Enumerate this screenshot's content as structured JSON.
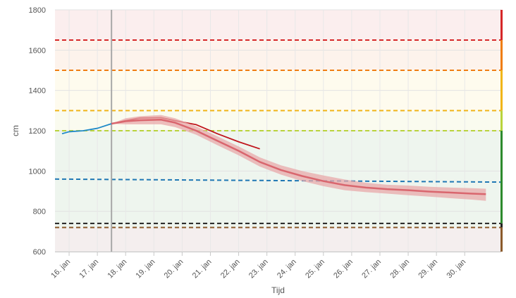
{
  "chart_data": {
    "type": "line",
    "xlabel": "Tijd",
    "ylabel": "cm",
    "ylim": [
      600,
      1800
    ],
    "xlim": [
      "2023-01-15T12:00",
      "2023-01-31T07:00"
    ],
    "yticks": [
      600,
      800,
      1000,
      1200,
      1400,
      1600,
      1800
    ],
    "xticks": [
      {
        "date": "2023-01-16",
        "label": "16. jan"
      },
      {
        "date": "2023-01-17",
        "label": "17. jan"
      },
      {
        "date": "2023-01-18",
        "label": "18. jan"
      },
      {
        "date": "2023-01-19",
        "label": "19. jan"
      },
      {
        "date": "2023-01-20",
        "label": "20. jan"
      },
      {
        "date": "2023-01-21",
        "label": "21. jan"
      },
      {
        "date": "2023-01-22",
        "label": "22. jan"
      },
      {
        "date": "2023-01-23",
        "label": "23. jan"
      },
      {
        "date": "2023-01-24",
        "label": "24. jan"
      },
      {
        "date": "2023-01-25",
        "label": "25. jan"
      },
      {
        "date": "2023-01-26",
        "label": "26. jan"
      },
      {
        "date": "2023-01-27",
        "label": "27. jan"
      },
      {
        "date": "2023-01-28",
        "label": "28. jan"
      },
      {
        "date": "2023-01-29",
        "label": "29. jan"
      },
      {
        "date": "2023-01-30",
        "label": "30. jan"
      }
    ],
    "grid": true,
    "now": "2023-01-17T12:00",
    "zones": [
      {
        "from": 1650,
        "to": 1800,
        "color": "#fbeeee"
      },
      {
        "from": 1500,
        "to": 1650,
        "color": "#fdf3ec"
      },
      {
        "from": 1300,
        "to": 1500,
        "color": "#fefbee"
      },
      {
        "from": 1200,
        "to": 1300,
        "color": "#fafbef"
      },
      {
        "from": 720,
        "to": 1200,
        "color": "#eef5ee"
      },
      {
        "from": 600,
        "to": 720,
        "color": "#f4eeee"
      }
    ],
    "threshold_lines": [
      {
        "value": 1650,
        "color": "#d62728"
      },
      {
        "value": 1500,
        "color": "#ef7d12"
      },
      {
        "value": 1300,
        "color": "#f0b51a"
      },
      {
        "value": 1200,
        "color": "#b9d33c"
      },
      {
        "value": 960,
        "end_value": 945,
        "color": "#1f77b4"
      },
      {
        "value": 740,
        "color": "#222222"
      },
      {
        "value": 720,
        "color": "#8b5a2b"
      }
    ],
    "side_bar": [
      {
        "from": 1650,
        "to": 1800,
        "color": "#d62728"
      },
      {
        "from": 1500,
        "to": 1650,
        "color": "#ef7d12"
      },
      {
        "from": 1300,
        "to": 1500,
        "color": "#f0b51a"
      },
      {
        "from": 1200,
        "to": 1300,
        "color": "#b9d33c"
      },
      {
        "from": 740,
        "to": 1200,
        "color": "#2e8b2e"
      },
      {
        "from": 720,
        "to": 740,
        "color": "#222222"
      },
      {
        "from": 600,
        "to": 720,
        "color": "#8b5a2b"
      }
    ],
    "series": [
      {
        "role": "observed",
        "color": "#1f8ac8",
        "x": [
          "2023-01-15T18:00",
          "2023-01-16T00:00",
          "2023-01-16T12:00",
          "2023-01-17T00:00",
          "2023-01-17T12:00"
        ],
        "y": [
          1185,
          1195,
          1200,
          1212,
          1235
        ]
      },
      {
        "role": "forecast",
        "color": "#c0141c",
        "x": [
          "2023-01-17T12:00",
          "2023-01-18T00:00",
          "2023-01-18T12:00",
          "2023-01-19T06:00",
          "2023-01-19T18:00",
          "2023-01-20T12:00",
          "2023-01-21T06:00",
          "2023-01-22T00:00",
          "2023-01-22T18:00"
        ],
        "y": [
          1235,
          1250,
          1263,
          1265,
          1250,
          1230,
          1185,
          1145,
          1110
        ]
      },
      {
        "role": "ensemble",
        "color": "#d9666e",
        "band_color": "#e8a8aa",
        "x": [
          "2023-01-17T12:00",
          "2023-01-18T00:00",
          "2023-01-18T12:00",
          "2023-01-19T06:00",
          "2023-01-19T18:00",
          "2023-01-20T12:00",
          "2023-01-21T06:00",
          "2023-01-22T00:00",
          "2023-01-22T18:00",
          "2023-01-23T12:00",
          "2023-01-24T06:00",
          "2023-01-25T00:00",
          "2023-01-25T18:00",
          "2023-01-26T12:00",
          "2023-01-27T06:00",
          "2023-01-28T00:00",
          "2023-01-28T18:00",
          "2023-01-29T12:00",
          "2023-01-30T06:00",
          "2023-01-30T18:00"
        ],
        "y": [
          1235,
          1247,
          1252,
          1255,
          1240,
          1200,
          1150,
          1100,
          1045,
          1005,
          975,
          950,
          930,
          918,
          910,
          905,
          898,
          893,
          888,
          885
        ],
        "lower": [
          1235,
          1232,
          1232,
          1232,
          1218,
          1180,
          1128,
          1078,
          1022,
          982,
          950,
          925,
          905,
          895,
          888,
          880,
          873,
          865,
          858,
          852
        ],
        "upper": [
          1235,
          1262,
          1272,
          1278,
          1262,
          1222,
          1172,
          1122,
          1068,
          1028,
          1000,
          978,
          958,
          942,
          932,
          928,
          922,
          918,
          915,
          912
        ]
      }
    ]
  }
}
